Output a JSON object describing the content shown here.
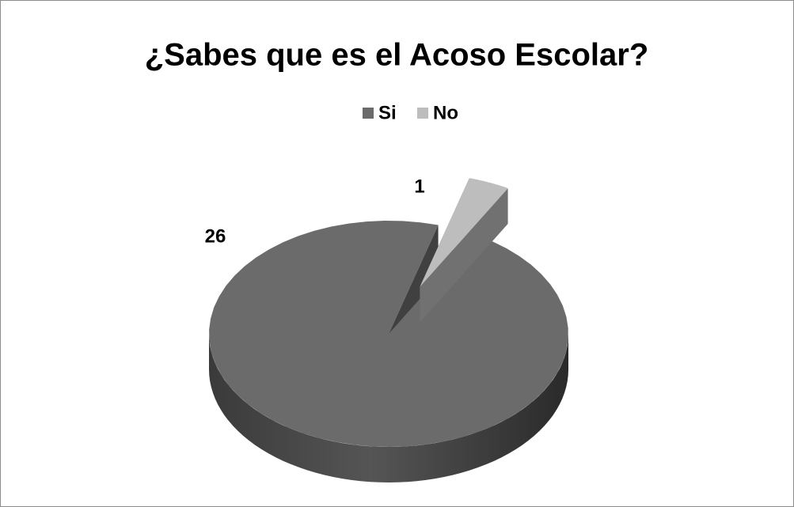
{
  "chart_data": {
    "type": "pie",
    "title": "¿Sabes que es el Acoso Escolar?",
    "categories": [
      "Si",
      "No"
    ],
    "values": [
      26,
      1
    ],
    "colors": [
      "#6b6b6b",
      "#bdbdbd"
    ],
    "legend": "top",
    "explode": [
      false,
      true
    ]
  }
}
